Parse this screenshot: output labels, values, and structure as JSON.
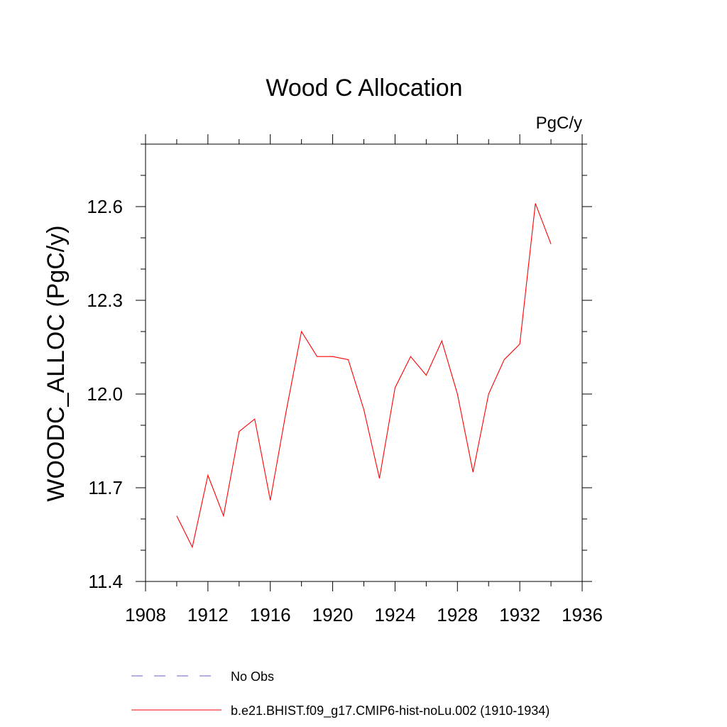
{
  "chart_data": {
    "type": "line",
    "title": "Wood C Allocation",
    "units_label": "PgC/y",
    "ylabel": "WOODC_ALLOC  (PgC/y)",
    "xlabel": "",
    "xlim": [
      1908,
      1936
    ],
    "ylim": [
      11.4,
      12.8
    ],
    "x_ticks": [
      1908,
      1912,
      1916,
      1920,
      1924,
      1928,
      1932,
      1936
    ],
    "x_tick_labels": [
      "1908",
      "1912",
      "1916",
      "1920",
      "1924",
      "1928",
      "1932",
      "1936"
    ],
    "y_ticks": [
      11.4,
      11.7,
      12.0,
      12.3,
      12.6
    ],
    "y_tick_labels": [
      "11.4",
      "11.7",
      "12.0",
      "12.3",
      "12.6"
    ],
    "grid": false,
    "legend_position": "bottom",
    "series": [
      {
        "name": "b.e21.BHIST.f09_g17.CMIP6-hist-noLu.002 (1910-1934)",
        "color": "#ff0000",
        "dash": "solid",
        "x": [
          1910,
          1911,
          1912,
          1913,
          1914,
          1915,
          1916,
          1917,
          1918,
          1919,
          1920,
          1921,
          1922,
          1923,
          1924,
          1925,
          1926,
          1927,
          1928,
          1929,
          1930,
          1931,
          1932,
          1933,
          1934
        ],
        "y": [
          11.61,
          11.51,
          11.74,
          11.61,
          11.88,
          11.92,
          11.66,
          11.94,
          12.2,
          12.12,
          12.12,
          12.11,
          11.95,
          11.73,
          12.02,
          12.12,
          12.06,
          12.17,
          12.0,
          11.75,
          12.0,
          12.11,
          12.16,
          12.61,
          12.48
        ]
      }
    ],
    "legend": [
      {
        "label": "No Obs",
        "color": "#6a5acd",
        "dash": "dashed"
      },
      {
        "label": "b.e21.BHIST.f09_g17.CMIP6-hist-noLu.002 (1910-1934)",
        "color": "#ff0000",
        "dash": "solid"
      }
    ]
  }
}
